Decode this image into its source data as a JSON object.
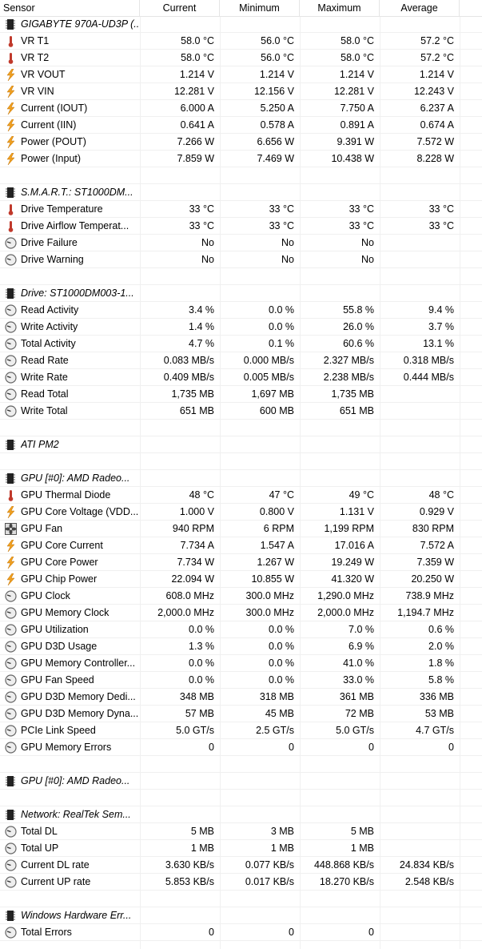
{
  "header": {
    "columns": [
      "Sensor",
      "Current",
      "Minimum",
      "Maximum",
      "Average"
    ]
  },
  "groups": [
    {
      "title": "GIGABYTE 970A-UD3P (...",
      "rows": [
        {
          "icon": "temperature",
          "name": "VR T1",
          "values": [
            "58.0 °C",
            "56.0 °C",
            "58.0 °C",
            "57.2 °C"
          ]
        },
        {
          "icon": "temperature",
          "name": "VR T2",
          "values": [
            "58.0 °C",
            "56.0 °C",
            "58.0 °C",
            "57.2 °C"
          ]
        },
        {
          "icon": "voltage",
          "name": "VR VOUT",
          "values": [
            "1.214 V",
            "1.214 V",
            "1.214 V",
            "1.214 V"
          ]
        },
        {
          "icon": "voltage",
          "name": "VR VIN",
          "values": [
            "12.281 V",
            "12.156 V",
            "12.281 V",
            "12.243 V"
          ]
        },
        {
          "icon": "voltage",
          "name": "Current (IOUT)",
          "values": [
            "6.000 A",
            "5.250 A",
            "7.750 A",
            "6.237 A"
          ]
        },
        {
          "icon": "voltage",
          "name": "Current (IIN)",
          "values": [
            "0.641 A",
            "0.578 A",
            "0.891 A",
            "0.674 A"
          ]
        },
        {
          "icon": "voltage",
          "name": "Power (POUT)",
          "values": [
            "7.266 W",
            "6.656 W",
            "9.391 W",
            "7.572 W"
          ]
        },
        {
          "icon": "voltage",
          "name": "Power (Input)",
          "values": [
            "7.859 W",
            "7.469 W",
            "10.438 W",
            "8.228 W"
          ]
        }
      ]
    },
    {
      "title": "S.M.A.R.T.: ST1000DM...",
      "rows": [
        {
          "icon": "temperature",
          "name": "Drive Temperature",
          "values": [
            "33 °C",
            "33 °C",
            "33 °C",
            "33 °C"
          ]
        },
        {
          "icon": "temperature",
          "name": "Drive Airflow Temperat...",
          "values": [
            "33 °C",
            "33 °C",
            "33 °C",
            "33 °C"
          ]
        },
        {
          "icon": "gauge",
          "name": "Drive Failure",
          "values": [
            "No",
            "No",
            "No"
          ]
        },
        {
          "icon": "gauge",
          "name": "Drive Warning",
          "values": [
            "No",
            "No",
            "No"
          ]
        }
      ]
    },
    {
      "title": "Drive: ST1000DM003-1...",
      "rows": [
        {
          "icon": "gauge",
          "name": "Read Activity",
          "values": [
            "3.4 %",
            "0.0 %",
            "55.8 %",
            "9.4 %"
          ]
        },
        {
          "icon": "gauge",
          "name": "Write Activity",
          "values": [
            "1.4 %",
            "0.0 %",
            "26.0 %",
            "3.7 %"
          ]
        },
        {
          "icon": "gauge",
          "name": "Total Activity",
          "values": [
            "4.7 %",
            "0.1 %",
            "60.6 %",
            "13.1 %"
          ]
        },
        {
          "icon": "gauge",
          "name": "Read Rate",
          "values": [
            "0.083 MB/s",
            "0.000 MB/s",
            "2.327 MB/s",
            "0.318 MB/s"
          ]
        },
        {
          "icon": "gauge",
          "name": "Write Rate",
          "values": [
            "0.409 MB/s",
            "0.005 MB/s",
            "2.238 MB/s",
            "0.444 MB/s"
          ]
        },
        {
          "icon": "gauge",
          "name": "Read Total",
          "values": [
            "1,735 MB",
            "1,697 MB",
            "1,735 MB"
          ]
        },
        {
          "icon": "gauge",
          "name": "Write Total",
          "values": [
            "651 MB",
            "600 MB",
            "651 MB"
          ]
        }
      ]
    },
    {
      "title": "ATI PM2",
      "rows": []
    },
    {
      "title": "GPU [#0]: AMD Radeo...",
      "rows": [
        {
          "icon": "temperature",
          "name": "GPU Thermal Diode",
          "values": [
            "48 °C",
            "47 °C",
            "49 °C",
            "48 °C"
          ]
        },
        {
          "icon": "voltage",
          "name": "GPU Core Voltage (VDD...",
          "values": [
            "1.000 V",
            "0.800 V",
            "1.131 V",
            "0.929 V"
          ]
        },
        {
          "icon": "fan",
          "name": "GPU Fan",
          "values": [
            "940 RPM",
            "6 RPM",
            "1,199 RPM",
            "830 RPM"
          ]
        },
        {
          "icon": "voltage",
          "name": "GPU Core Current",
          "values": [
            "7.734 A",
            "1.547 A",
            "17.016 A",
            "7.572 A"
          ]
        },
        {
          "icon": "voltage",
          "name": "GPU Core Power",
          "values": [
            "7.734 W",
            "1.267 W",
            "19.249 W",
            "7.359 W"
          ]
        },
        {
          "icon": "voltage",
          "name": "GPU Chip Power",
          "values": [
            "22.094 W",
            "10.855 W",
            "41.320 W",
            "20.250 W"
          ]
        },
        {
          "icon": "gauge",
          "name": "GPU Clock",
          "values": [
            "608.0 MHz",
            "300.0 MHz",
            "1,290.0 MHz",
            "738.9 MHz"
          ]
        },
        {
          "icon": "gauge",
          "name": "GPU Memory Clock",
          "values": [
            "2,000.0 MHz",
            "300.0 MHz",
            "2,000.0 MHz",
            "1,194.7 MHz"
          ]
        },
        {
          "icon": "gauge",
          "name": "GPU Utilization",
          "values": [
            "0.0 %",
            "0.0 %",
            "7.0 %",
            "0.6 %"
          ]
        },
        {
          "icon": "gauge",
          "name": "GPU D3D Usage",
          "values": [
            "1.3 %",
            "0.0 %",
            "6.9 %",
            "2.0 %"
          ]
        },
        {
          "icon": "gauge",
          "name": "GPU Memory Controller...",
          "values": [
            "0.0 %",
            "0.0 %",
            "41.0 %",
            "1.8 %"
          ]
        },
        {
          "icon": "gauge",
          "name": "GPU Fan Speed",
          "values": [
            "0.0 %",
            "0.0 %",
            "33.0 %",
            "5.8 %"
          ]
        },
        {
          "icon": "gauge",
          "name": "GPU D3D Memory Dedi...",
          "values": [
            "348 MB",
            "318 MB",
            "361 MB",
            "336 MB"
          ]
        },
        {
          "icon": "gauge",
          "name": "GPU D3D Memory Dyna...",
          "values": [
            "57 MB",
            "45 MB",
            "72 MB",
            "53 MB"
          ]
        },
        {
          "icon": "gauge",
          "name": "PCIe Link Speed",
          "values": [
            "5.0 GT/s",
            "2.5 GT/s",
            "5.0 GT/s",
            "4.7 GT/s"
          ]
        },
        {
          "icon": "gauge",
          "name": "GPU Memory Errors",
          "values": [
            "0",
            "0",
            "0",
            "0"
          ]
        }
      ]
    },
    {
      "title": "GPU [#0]: AMD Radeo...",
      "rows": []
    },
    {
      "title": "Network: RealTek Sem...",
      "rows": [
        {
          "icon": "gauge",
          "name": "Total DL",
          "values": [
            "5 MB",
            "3 MB",
            "5 MB"
          ]
        },
        {
          "icon": "gauge",
          "name": "Total UP",
          "values": [
            "1 MB",
            "1 MB",
            "1 MB"
          ]
        },
        {
          "icon": "gauge",
          "name": "Current DL rate",
          "values": [
            "3.630 KB/s",
            "0.077 KB/s",
            "448.868 KB/s",
            "24.834 KB/s"
          ]
        },
        {
          "icon": "gauge",
          "name": "Current UP rate",
          "values": [
            "5.853 KB/s",
            "0.017 KB/s",
            "18.270 KB/s",
            "2.548 KB/s"
          ]
        }
      ]
    },
    {
      "title": "Windows Hardware Err...",
      "rows": [
        {
          "icon": "gauge",
          "name": "Total Errors",
          "values": [
            "0",
            "0",
            "0"
          ]
        }
      ]
    }
  ]
}
